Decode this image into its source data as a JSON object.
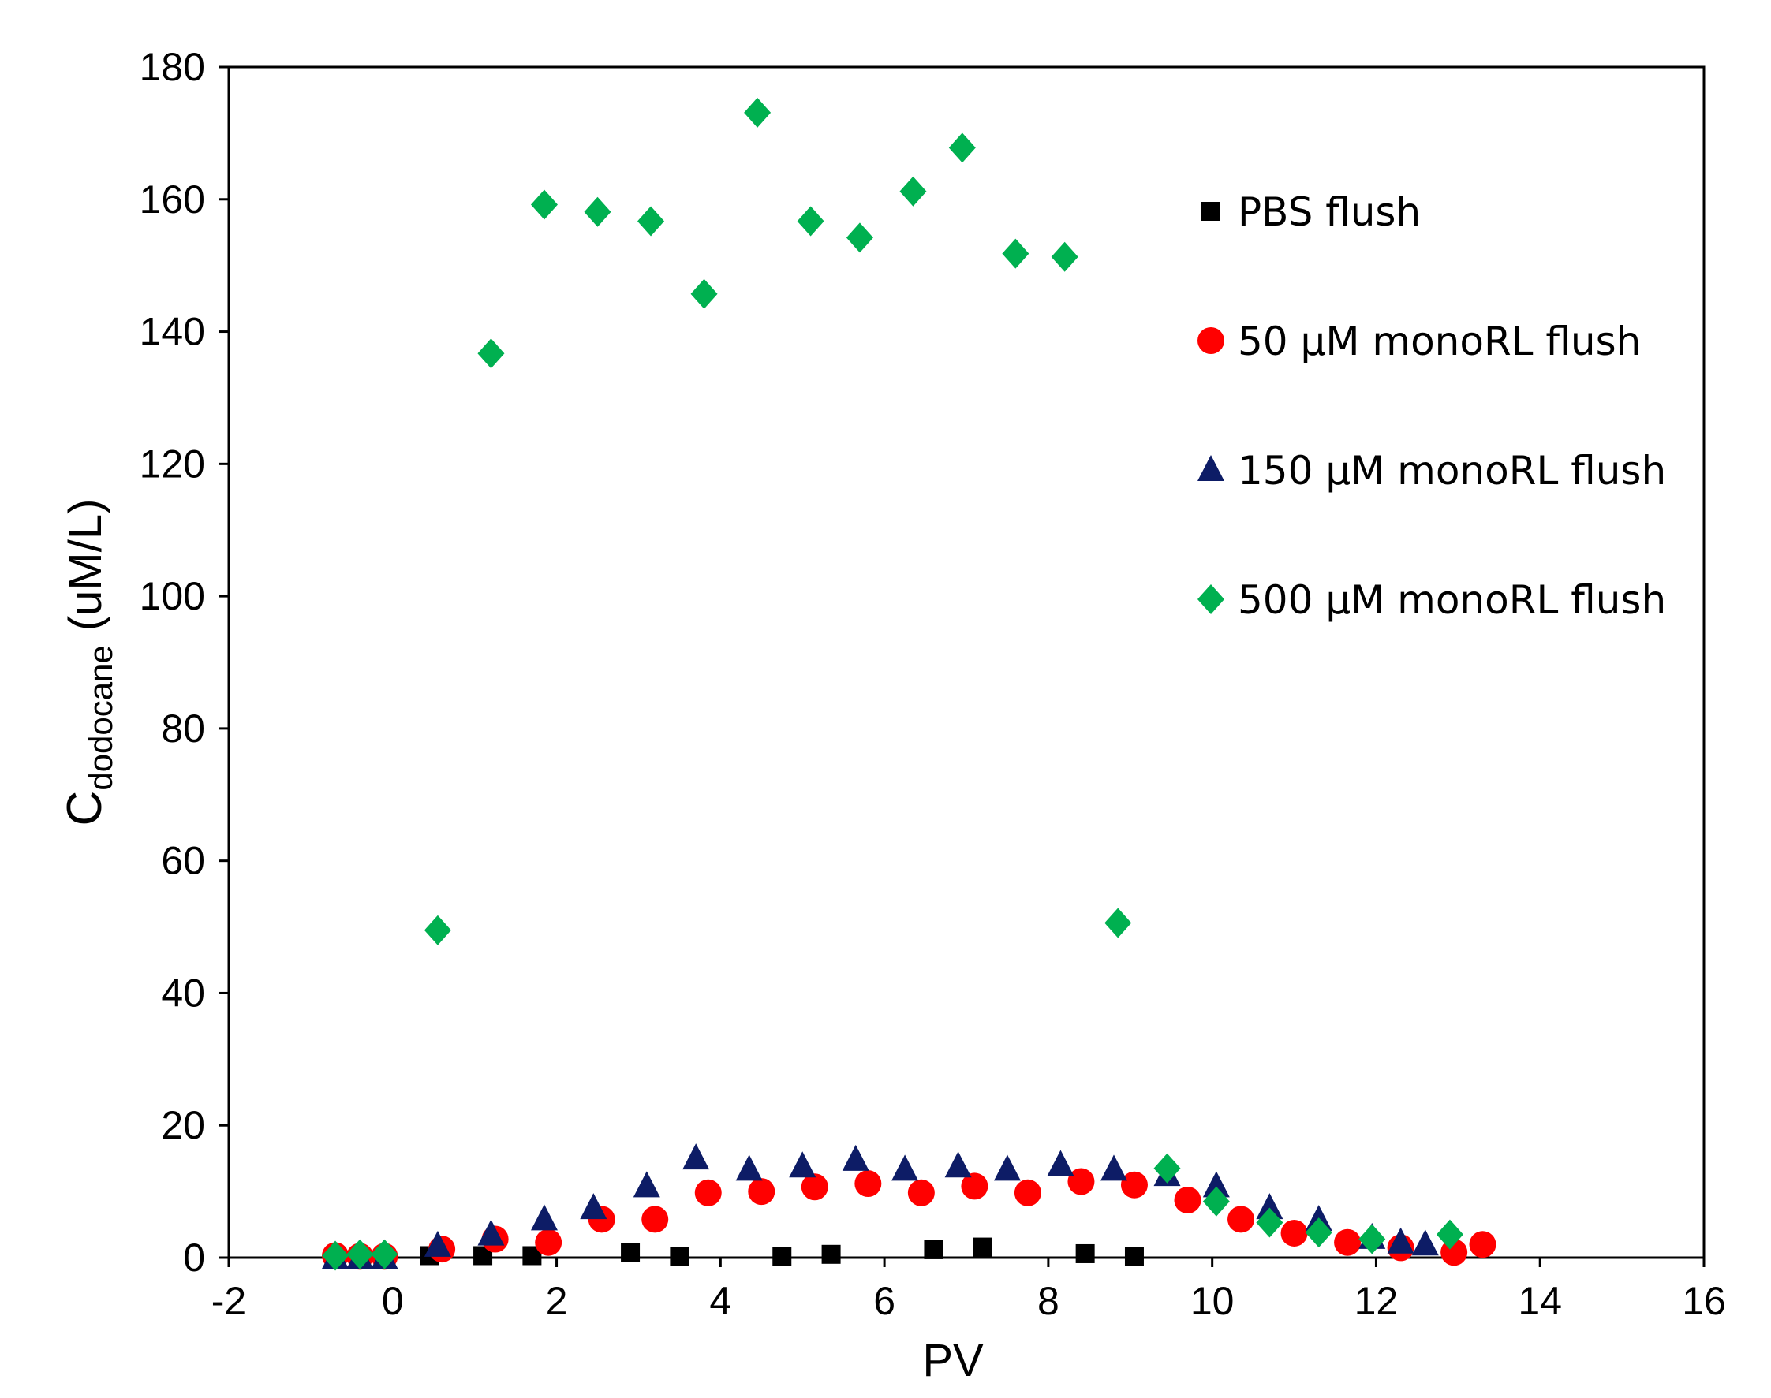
{
  "chart_data": {
    "type": "scatter",
    "title": "",
    "xlabel": "PV",
    "ylabel_main": "C",
    "ylabel_sub": "dodocane",
    "ylabel_unit": "(uM/L)",
    "xlim": [
      -2,
      16
    ],
    "ylim": [
      0,
      180
    ],
    "xticks": [
      "-2",
      "0",
      "2",
      "4",
      "6",
      "8",
      "10",
      "12",
      "14",
      "16"
    ],
    "yticks": [
      "0",
      "20",
      "40",
      "60",
      "80",
      "100",
      "120",
      "140",
      "160",
      "180"
    ],
    "grid": false,
    "legend_position": "top-right",
    "series": [
      {
        "name": "PBS flush",
        "marker": "square",
        "color": "#000000",
        "x": [
          -0.7,
          -0.4,
          -0.1,
          0.45,
          1.1,
          1.7,
          2.9,
          3.5,
          4.75,
          5.35,
          6.6,
          7.2,
          8.45,
          9.05
        ],
        "y": [
          0,
          0,
          0,
          0.3,
          0.3,
          0.3,
          0.8,
          0.2,
          0.2,
          0.5,
          1.2,
          1.6,
          0.6,
          0.2
        ]
      },
      {
        "name": "50 µM monoRL flush",
        "marker": "circle",
        "color": "#ff0000",
        "x": [
          -0.7,
          -0.4,
          -0.1,
          0.6,
          1.25,
          1.9,
          2.55,
          3.2,
          3.85,
          4.5,
          5.15,
          5.8,
          6.45,
          7.1,
          7.75,
          8.4,
          9.05,
          9.7,
          10.35,
          11.0,
          11.65,
          12.3,
          12.95,
          13.3
        ],
        "y": [
          0.3,
          0.2,
          0.2,
          1.3,
          2.8,
          2.3,
          5.8,
          5.8,
          9.8,
          10.0,
          10.7,
          11.2,
          9.8,
          10.8,
          9.8,
          11.5,
          11.0,
          8.7,
          5.8,
          3.7,
          2.3,
          1.5,
          0.8,
          2.0
        ]
      },
      {
        "name": "150 µM monoRL flush",
        "marker": "triangle",
        "color": "#0d1c66",
        "x": [
          -0.7,
          -0.4,
          -0.1,
          0.55,
          1.2,
          1.85,
          2.45,
          3.1,
          3.7,
          4.35,
          5.0,
          5.65,
          6.25,
          6.9,
          7.5,
          8.15,
          8.8,
          9.45,
          10.05,
          10.7,
          11.3,
          11.95,
          12.3,
          12.6
        ],
        "y": [
          0,
          0,
          0,
          1.8,
          3.5,
          5.8,
          7.5,
          10.8,
          15.0,
          13.3,
          13.8,
          14.8,
          13.3,
          13.8,
          13.3,
          14.0,
          13.3,
          12.5,
          10.8,
          7.5,
          5.7,
          3.0,
          2.3,
          2.0
        ]
      },
      {
        "name": "500 µM monoRL flush",
        "marker": "diamond",
        "color": "#00b050",
        "x": [
          -0.7,
          -0.4,
          -0.1,
          0.55,
          1.2,
          1.85,
          2.5,
          3.15,
          3.8,
          4.45,
          5.1,
          5.7,
          6.35,
          6.95,
          7.6,
          8.2,
          8.85,
          9.45,
          10.05,
          10.7,
          11.3,
          11.95,
          12.9
        ],
        "y": [
          0.3,
          0.5,
          0.5,
          49.5,
          136.7,
          159.2,
          158.1,
          156.7,
          145.7,
          173.1,
          156.7,
          154.2,
          161.2,
          167.8,
          151.8,
          151.3,
          50.6,
          13.5,
          8.5,
          5.3,
          3.8,
          2.8,
          3.5
        ]
      }
    ]
  }
}
